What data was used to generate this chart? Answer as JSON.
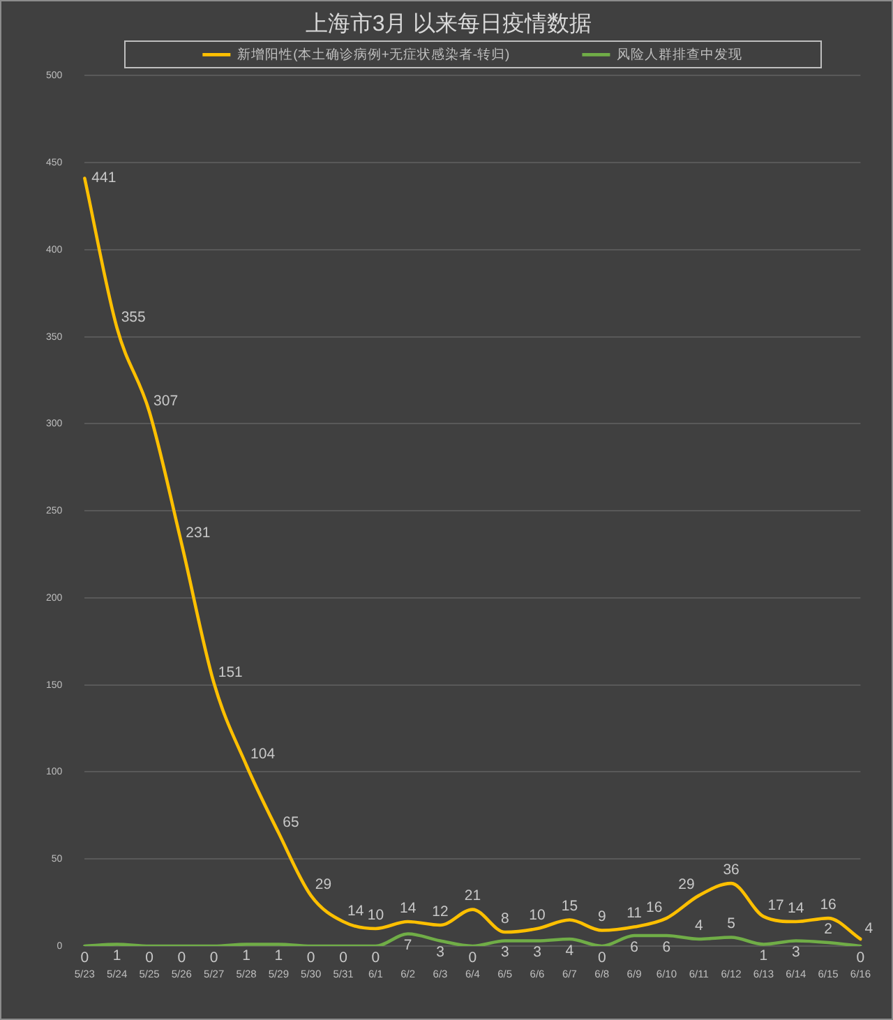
{
  "chart_data": {
    "type": "line",
    "title": "上海市3月 以来每日疫情数据",
    "categories": [
      "5/23",
      "5/24",
      "5/25",
      "5/26",
      "5/27",
      "5/28",
      "5/29",
      "5/30",
      "5/31",
      "6/1",
      "6/2",
      "6/3",
      "6/4",
      "6/5",
      "6/6",
      "6/7",
      "6/8",
      "6/9",
      "6/10",
      "6/11",
      "6/12",
      "6/13",
      "6/14",
      "6/15",
      "6/16"
    ],
    "series": [
      {
        "name": "新增阳性(本土确诊病例+无症状感染者-转归)",
        "color": "#ffc000",
        "values": [
          441,
          355,
          307,
          231,
          151,
          104,
          65,
          29,
          14,
          10,
          14,
          12,
          21,
          8,
          10,
          15,
          9,
          11,
          16,
          29,
          36,
          17,
          14,
          16,
          4
        ]
      },
      {
        "name": "风险人群排查中发现",
        "color": "#70ad47",
        "values": [
          0,
          1,
          0,
          0,
          0,
          1,
          1,
          0,
          0,
          0,
          7,
          3,
          0,
          3,
          3,
          4,
          0,
          6,
          6,
          4,
          5,
          1,
          3,
          2,
          0
        ]
      }
    ],
    "ylim": [
      0,
      500
    ],
    "yticks": [
      0,
      50,
      100,
      150,
      200,
      250,
      300,
      350,
      400,
      450,
      500
    ],
    "grid": "y",
    "legend": "top",
    "marker": "none",
    "line_style": "solid",
    "data_labels": true
  }
}
